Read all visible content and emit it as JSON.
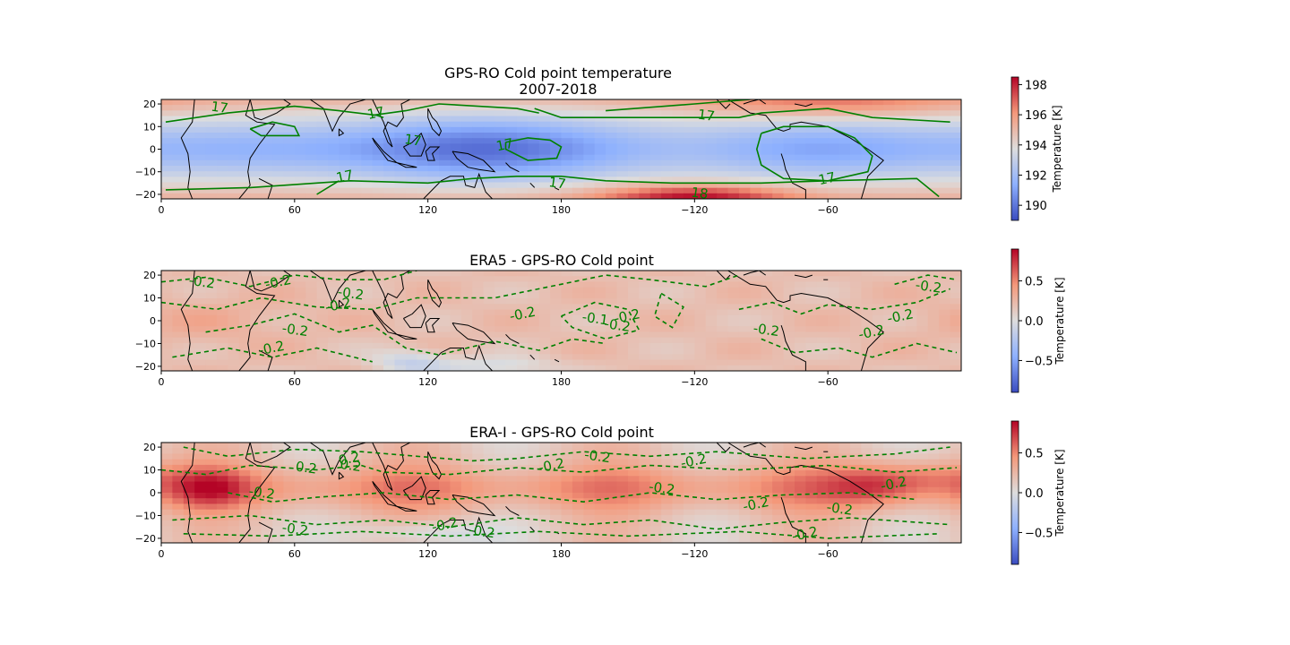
{
  "figure": {
    "background": "#ffffff",
    "contour_color": "#008000",
    "land_outline_color": "#000000",
    "colormap": "coolwarm",
    "colormap_low": "#3b4cc0",
    "colormap_mid": "#dddddd",
    "colormap_high": "#b40426"
  },
  "chart_data": [
    {
      "type": "heatmap",
      "title_line1": "GPS-RO Cold point temperature",
      "title_line2": "2007-2018",
      "xlabel": "",
      "ylabel": "",
      "x_ticks": [
        "0",
        "60",
        "120",
        "180",
        "−120",
        "−60"
      ],
      "y_ticks": [
        "20",
        "10",
        "0",
        "−10",
        "−20"
      ],
      "lon_range": [
        0,
        360
      ],
      "lat_range": [
        -22,
        22
      ],
      "value_range": [
        189,
        198.5
      ],
      "colorbar_ticks": [
        "198",
        "196",
        "194",
        "192",
        "190"
      ],
      "colorbar_label": "Temperature [K]",
      "contour_labels": [
        "17",
        "17",
        "17",
        "17",
        "17",
        "17",
        "17",
        "17",
        "18"
      ],
      "pattern": "cold minimum over western Pacific / maritime continent near equator, warm band near 20S-120W",
      "grid": false
    },
    {
      "type": "heatmap",
      "title": "ERA5 - GPS-RO Cold point",
      "xlabel": "",
      "ylabel": "",
      "x_ticks": [
        "0",
        "60",
        "120",
        "180",
        "−120",
        "−60"
      ],
      "y_ticks": [
        "20",
        "10",
        "0",
        "−10",
        "−20"
      ],
      "lon_range": [
        0,
        360
      ],
      "lat_range": [
        -22,
        22
      ],
      "value_range": [
        -0.9,
        0.9
      ],
      "colorbar_ticks": [
        "0.5",
        "0.0",
        "−0.5"
      ],
      "colorbar_label": "Temperature [K]",
      "contour_labels": [
        "-0.2",
        "-0.2",
        "-0.2",
        "-0.2",
        "-0.2",
        "-0.2",
        "-0.1",
        "-0.2",
        "-0.2",
        "-0.2",
        "-0.2",
        "-0.2",
        "-0.2",
        "-0.2"
      ],
      "pattern": "mostly slightly warm (0.1-0.3 K) differences, weak negative patches near 100E-150E south",
      "grid": false
    },
    {
      "type": "heatmap",
      "title": "ERA-I - GPS-RO Cold point",
      "xlabel": "",
      "ylabel": "",
      "x_ticks": [
        "0",
        "60",
        "120",
        "180",
        "−120",
        "−60"
      ],
      "y_ticks": [
        "20",
        "10",
        "0",
        "−10",
        "−20"
      ],
      "lon_range": [
        0,
        360
      ],
      "lat_range": [
        -22,
        22
      ],
      "value_range": [
        -0.9,
        0.9
      ],
      "colorbar_ticks": [
        "0.5",
        "0.0",
        "−0.5"
      ],
      "colorbar_label": "Temperature [K]",
      "contour_labels": [
        "0.2",
        "0.2",
        "0.2",
        "-0.2",
        "-0.2",
        "-0.2",
        "-0.2",
        "-0.2",
        "-0.2",
        "-0.2",
        "-0.2",
        "-0.2",
        "-0.2",
        "-0.2",
        "-0.2"
      ],
      "pattern": "warm positive differences (0.3-0.8 K) along equator, strongest near 20E and 40W",
      "grid": false
    }
  ]
}
